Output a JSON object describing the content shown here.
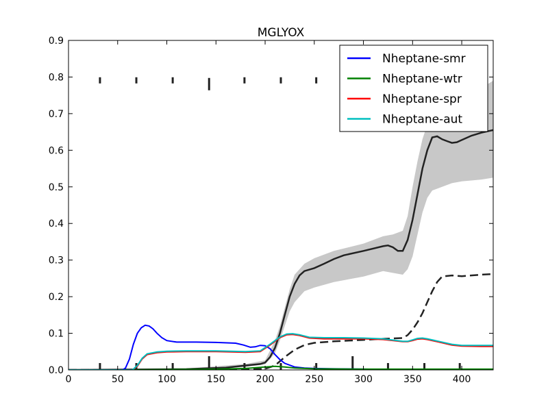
{
  "chart_data": {
    "type": "line",
    "title": "MGLYOX",
    "xlabel": "",
    "ylabel": "",
    "xlim": [
      0,
      432
    ],
    "ylim": [
      0,
      0.9
    ],
    "xticks": [
      0,
      50,
      100,
      150,
      200,
      250,
      300,
      350,
      400
    ],
    "yticks": [
      0.0,
      0.1,
      0.2,
      0.3,
      0.4,
      0.5,
      0.6,
      0.7,
      0.8,
      0.9
    ],
    "xtick_labels": [
      "0",
      "50",
      "100",
      "150",
      "200",
      "250",
      "300",
      "350",
      "400"
    ],
    "ytick_labels": [
      "0.0",
      "0.1",
      "0.2",
      "0.3",
      "0.4",
      "0.5",
      "0.6",
      "0.7",
      "0.8",
      "0.9"
    ],
    "grid": false,
    "legend_position": "top-right",
    "series": [
      {
        "name": "Nheptane-smr",
        "color": "#0000ff",
        "x": [
          0,
          55,
          58,
          62,
          66,
          70,
          74,
          78,
          82,
          86,
          90,
          95,
          100,
          110,
          120,
          130,
          150,
          170,
          178,
          185,
          190,
          195,
          200,
          205,
          210,
          215,
          220,
          230,
          240,
          250,
          270,
          300,
          330,
          360,
          400,
          432
        ],
        "y": [
          0,
          0,
          0.005,
          0.03,
          0.07,
          0.1,
          0.115,
          0.122,
          0.12,
          0.112,
          0.1,
          0.088,
          0.08,
          0.076,
          0.076,
          0.076,
          0.075,
          0.073,
          0.068,
          0.062,
          0.063,
          0.067,
          0.066,
          0.058,
          0.042,
          0.028,
          0.018,
          0.008,
          0.005,
          0.004,
          0.003,
          0.002,
          0.001,
          0.001,
          0.001,
          0.001
        ]
      },
      {
        "name": "Nheptane-wtr",
        "color": "#008000",
        "x": [
          0,
          60,
          100,
          150,
          180,
          200,
          210,
          220,
          230,
          250,
          300,
          350,
          400,
          432
        ],
        "y": [
          0,
          0,
          0.001,
          0.002,
          0.004,
          0.008,
          0.01,
          0.008,
          0.005,
          0.003,
          0.002,
          0.002,
          0.002,
          0.002
        ]
      },
      {
        "name": "Nheptane-spr",
        "color": "#ff0000",
        "x": [
          0,
          65,
          70,
          75,
          80,
          90,
          100,
          120,
          150,
          180,
          195,
          205,
          215,
          222,
          228,
          235,
          245,
          260,
          280,
          300,
          320,
          340,
          345,
          350,
          355,
          360,
          365,
          375,
          390,
          400,
          420,
          432
        ],
        "y": [
          0,
          0,
          0.01,
          0.03,
          0.042,
          0.047,
          0.049,
          0.05,
          0.05,
          0.048,
          0.05,
          0.068,
          0.088,
          0.096,
          0.097,
          0.094,
          0.087,
          0.085,
          0.085,
          0.085,
          0.083,
          0.077,
          0.077,
          0.08,
          0.084,
          0.085,
          0.083,
          0.077,
          0.068,
          0.065,
          0.064,
          0.064
        ]
      },
      {
        "name": "Nheptane-aut",
        "color": "#00bfbf",
        "x": [
          0,
          65,
          70,
          75,
          80,
          90,
          100,
          120,
          150,
          180,
          195,
          205,
          215,
          222,
          228,
          235,
          245,
          260,
          280,
          300,
          320,
          340,
          345,
          350,
          355,
          360,
          365,
          375,
          390,
          400,
          420,
          432
        ],
        "y": [
          0,
          0,
          0.012,
          0.032,
          0.044,
          0.049,
          0.051,
          0.052,
          0.052,
          0.05,
          0.052,
          0.07,
          0.09,
          0.098,
          0.099,
          0.096,
          0.089,
          0.088,
          0.088,
          0.087,
          0.085,
          0.078,
          0.078,
          0.082,
          0.086,
          0.087,
          0.085,
          0.079,
          0.07,
          0.067,
          0.067,
          0.067
        ]
      }
    ],
    "reference_mean": {
      "color": "#222222",
      "x": [
        0,
        120,
        160,
        180,
        195,
        200,
        205,
        210,
        215,
        220,
        225,
        230,
        235,
        240,
        250,
        260,
        270,
        280,
        300,
        320,
        325,
        330,
        335,
        340,
        345,
        350,
        355,
        360,
        365,
        370,
        375,
        380,
        385,
        390,
        395,
        400,
        410,
        420,
        432
      ],
      "y": [
        0,
        0.002,
        0.006,
        0.012,
        0.016,
        0.02,
        0.035,
        0.06,
        0.1,
        0.15,
        0.2,
        0.235,
        0.258,
        0.27,
        0.278,
        0.29,
        0.303,
        0.313,
        0.325,
        0.338,
        0.34,
        0.335,
        0.325,
        0.325,
        0.355,
        0.41,
        0.48,
        0.55,
        0.6,
        0.635,
        0.638,
        0.63,
        0.625,
        0.62,
        0.622,
        0.628,
        0.64,
        0.648,
        0.655
      ]
    },
    "reference_band": {
      "x": [
        0,
        120,
        180,
        200,
        210,
        215,
        220,
        225,
        230,
        240,
        250,
        270,
        300,
        320,
        330,
        340,
        345,
        350,
        355,
        360,
        365,
        370,
        380,
        390,
        400,
        420,
        432
      ],
      "lower": [
        0,
        0,
        0.008,
        0.015,
        0.045,
        0.08,
        0.12,
        0.16,
        0.185,
        0.215,
        0.225,
        0.24,
        0.255,
        0.27,
        0.265,
        0.26,
        0.275,
        0.31,
        0.37,
        0.43,
        0.47,
        0.49,
        0.5,
        0.51,
        0.515,
        0.52,
        0.525
      ],
      "upper": [
        0,
        0.004,
        0.016,
        0.026,
        0.08,
        0.12,
        0.17,
        0.22,
        0.26,
        0.29,
        0.305,
        0.325,
        0.345,
        0.365,
        0.37,
        0.38,
        0.42,
        0.5,
        0.57,
        0.63,
        0.67,
        0.7,
        0.72,
        0.735,
        0.75,
        0.77,
        0.79
      ]
    },
    "reference_dashed": {
      "color": "#222222",
      "x": [
        0,
        150,
        200,
        210,
        220,
        230,
        240,
        250,
        270,
        300,
        320,
        340,
        345,
        350,
        355,
        360,
        365,
        370,
        375,
        380,
        390,
        400,
        420,
        432
      ],
      "y": [
        0,
        0,
        0.003,
        0.012,
        0.035,
        0.055,
        0.068,
        0.074,
        0.078,
        0.082,
        0.085,
        0.087,
        0.095,
        0.11,
        0.13,
        0.155,
        0.185,
        0.215,
        0.24,
        0.255,
        0.258,
        0.256,
        0.26,
        0.262
      ]
    },
    "observation_marks": {
      "color": "#222222",
      "top_row_y": 0.79,
      "top_row_x": [
        32,
        69,
        106,
        143,
        179,
        216,
        252
      ],
      "bottom_row_x": [
        32,
        69,
        106,
        143,
        179,
        216,
        252,
        289,
        325,
        362,
        398
      ]
    }
  }
}
